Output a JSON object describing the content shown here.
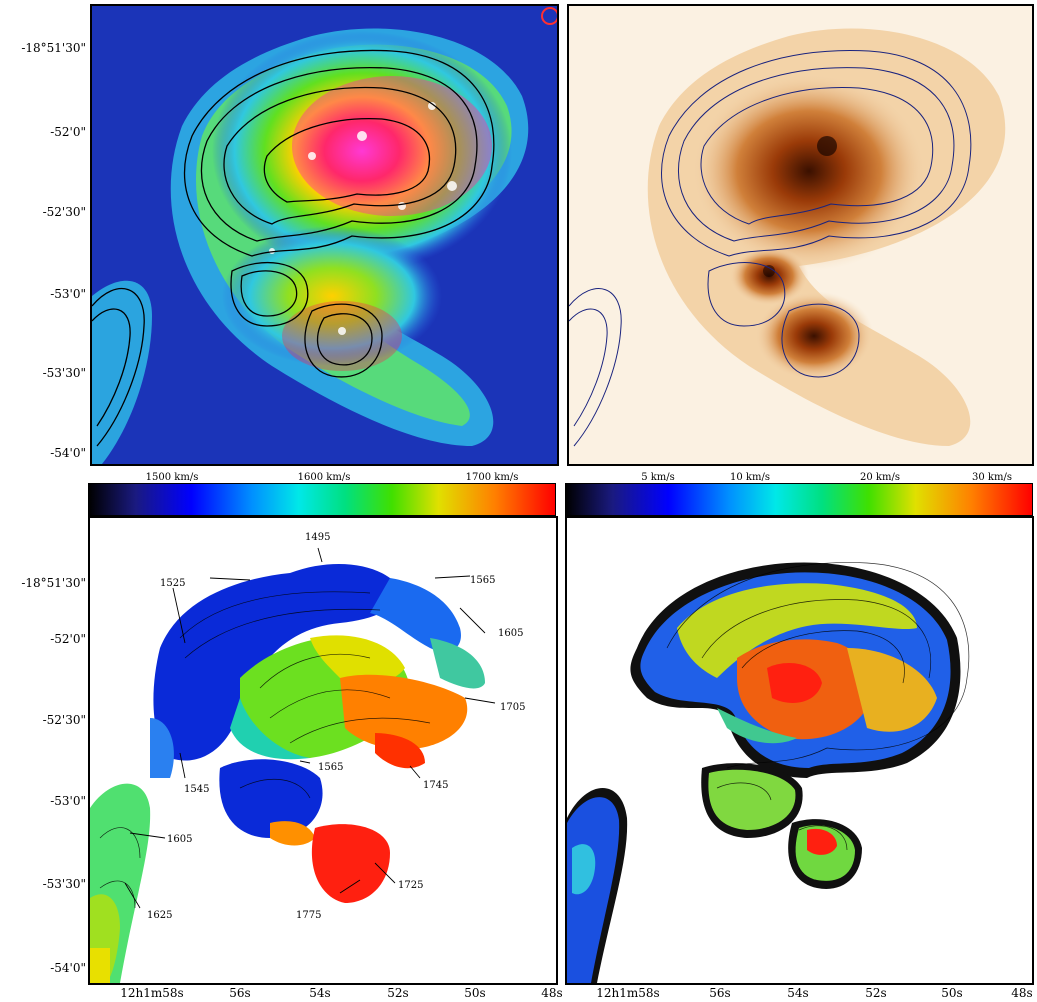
{
  "figure": {
    "y_axis_labels": [
      "-18°51'30\"",
      "-52'0\"",
      "-52'30\"",
      "-53'0\"",
      "-53'30\"",
      "-54'0\""
    ],
    "x_axis_labels": [
      "12h1m58s",
      "56s",
      "54s",
      "52s",
      "50s",
      "48s"
    ],
    "colorbar_velocity": {
      "labels": [
        "1500 km/s",
        "1600 km/s",
        "1700 km/s"
      ]
    },
    "colorbar_dispersion": {
      "labels": [
        "5 km/s",
        "10 km/s",
        "20 km/s",
        "30 km/s"
      ]
    },
    "velocity_contour_labels": [
      "1495",
      "1525",
      "1565",
      "1605",
      "1705",
      "1745",
      "1565",
      "1545",
      "1605",
      "1625",
      "1725",
      "1775"
    ],
    "colors": {
      "contour_top_left": "#000000",
      "contour_top_right": "#1a237e",
      "background": "#ffffff"
    }
  }
}
